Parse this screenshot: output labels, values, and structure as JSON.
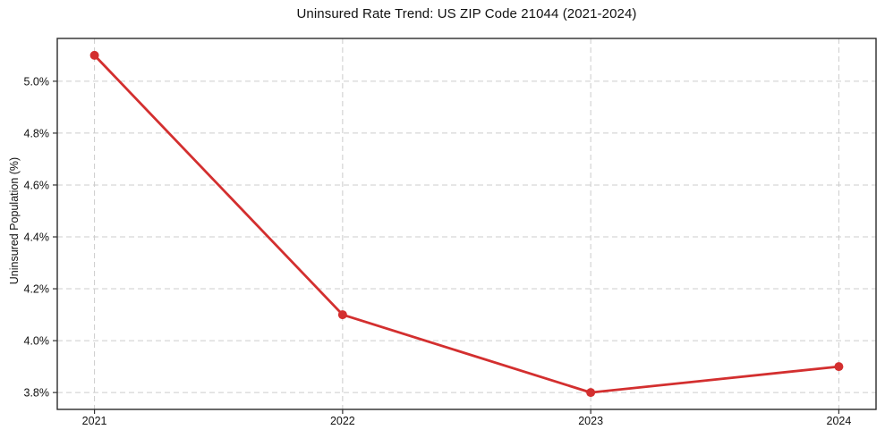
{
  "chart_data": {
    "type": "line",
    "title": "Uninsured Rate Trend: US ZIP Code 21044 (2021-2024)",
    "xlabel": "",
    "ylabel": "Uninsured Population (%)",
    "x": [
      2021,
      2022,
      2023,
      2024
    ],
    "x_tick_labels": [
      "2021",
      "2022",
      "2023",
      "2024"
    ],
    "series": [
      {
        "name": "uninsured-rate",
        "values": [
          5.1,
          4.1,
          3.8,
          3.9
        ]
      }
    ],
    "y_ticks": [
      3.8,
      4.0,
      4.2,
      4.4,
      4.6,
      4.8,
      5.0
    ],
    "y_tick_labels": [
      "3.8%",
      "4.0%",
      "4.2%",
      "4.4%",
      "4.6%",
      "4.8%",
      "5.0%"
    ],
    "xlim": [
      2020.85,
      2024.15
    ],
    "ylim": [
      3.735,
      5.165
    ],
    "grid": true,
    "legend": "none",
    "colors": {
      "line": "#d32f2f",
      "marker": "#d32f2f",
      "grid": "#cccccc",
      "spine": "#2b2b2b",
      "tick": "#333333",
      "text": "#111111",
      "background": "#ffffff"
    }
  }
}
